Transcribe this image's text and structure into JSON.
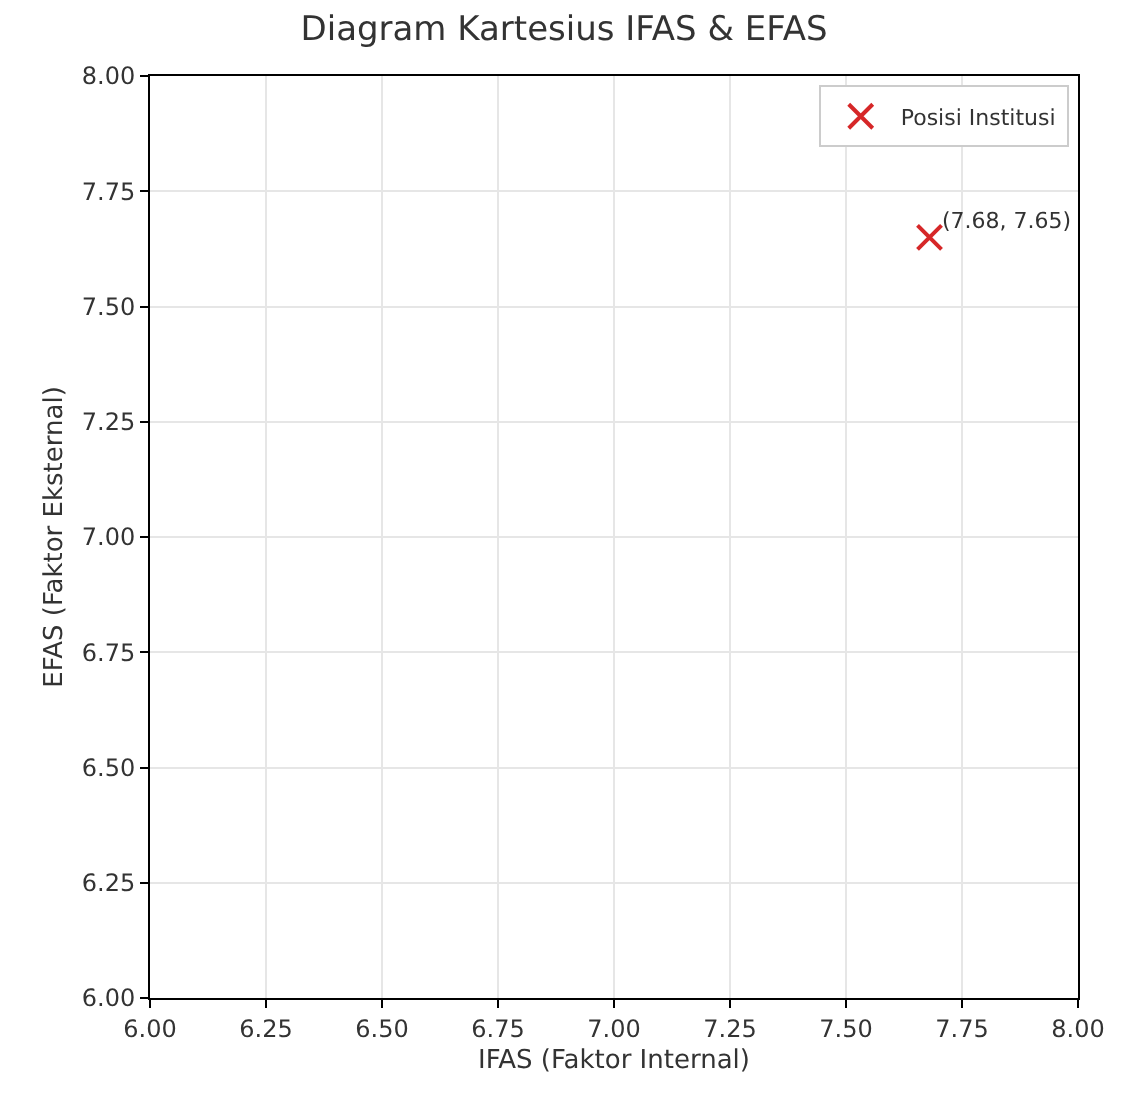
{
  "chart_data": {
    "type": "scatter",
    "title": "Diagram Kartesius IFAS & EFAS",
    "xlabel": "IFAS (Faktor Internal)",
    "ylabel": "EFAS (Faktor Eksternal)",
    "x": [
      7.68
    ],
    "series": [
      {
        "name": "Posisi Institusi",
        "color": "#d62728",
        "values": [
          7.65
        ]
      }
    ],
    "marker": "cross",
    "annotations": [
      {
        "text": "(7.68, 7.65)",
        "x": 7.68,
        "y": 7.65
      }
    ],
    "xlim": [
      6.0,
      8.0
    ],
    "xticks": [
      {
        "value": 6.0,
        "label": "6.00"
      },
      {
        "value": 6.25,
        "label": "6.25"
      },
      {
        "value": 6.5,
        "label": "6.50"
      },
      {
        "value": 6.75,
        "label": "6.75"
      },
      {
        "value": 7.0,
        "label": "7.00"
      },
      {
        "value": 7.25,
        "label": "7.25"
      },
      {
        "value": 7.5,
        "label": "7.50"
      },
      {
        "value": 7.75,
        "label": "7.75"
      },
      {
        "value": 8.0,
        "label": "8.00"
      }
    ],
    "ylim": [
      6.0,
      8.0
    ],
    "yticks": [
      {
        "value": 6.0,
        "label": "6.00"
      },
      {
        "value": 6.25,
        "label": "6.25"
      },
      {
        "value": 6.5,
        "label": "6.50"
      },
      {
        "value": 6.75,
        "label": "6.75"
      },
      {
        "value": 7.0,
        "label": "7.00"
      },
      {
        "value": 7.25,
        "label": "7.25"
      },
      {
        "value": 7.5,
        "label": "7.50"
      },
      {
        "value": 7.75,
        "label": "7.75"
      },
      {
        "value": 8.0,
        "label": "8.00"
      }
    ],
    "grid": true,
    "legend": "top right"
  }
}
